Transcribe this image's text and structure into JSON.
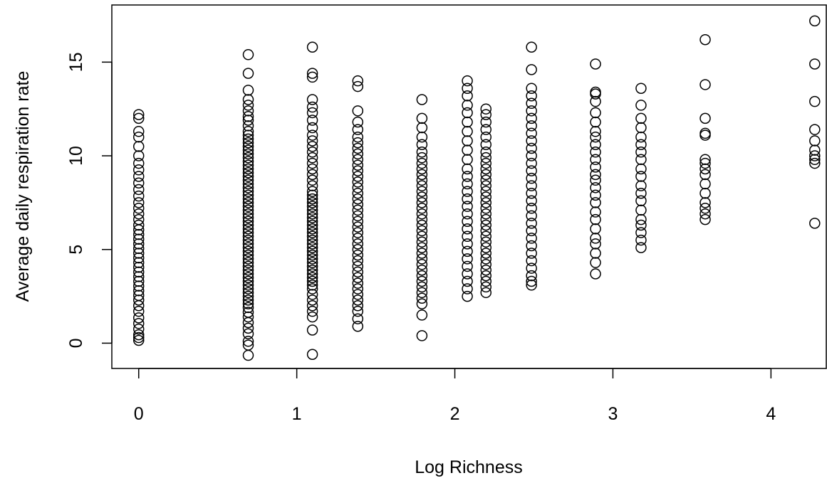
{
  "chart_data": {
    "type": "scatter",
    "title": "",
    "xlabel": "Log Richness",
    "ylabel": "Average daily respiration rate",
    "xlim": [
      -0.17,
      4.35
    ],
    "ylim": [
      -1.35,
      18.05
    ],
    "x_ticks": [
      0,
      1,
      2,
      3,
      4
    ],
    "y_ticks": [
      0,
      5,
      10,
      15
    ],
    "grid": false,
    "legend": "none",
    "groups": [
      {
        "x": 0,
        "y": [
          0.15,
          0.3,
          0.45,
          0.75,
          1.05,
          1.35,
          1.7,
          2.0,
          2.3,
          2.55,
          2.8,
          3.05,
          3.3,
          3.55,
          3.8,
          4.05,
          4.3,
          4.55,
          4.8,
          5.05,
          5.3,
          5.55,
          5.8,
          6.05,
          6.3,
          6.6,
          6.9,
          7.2,
          7.5,
          7.85,
          8.2,
          8.55,
          8.9,
          9.25,
          9.6,
          10.0,
          10.5,
          11.0,
          11.3,
          12.0,
          12.2
        ]
      },
      {
        "x": 0.693,
        "y": [
          -0.65,
          -0.1,
          0.1,
          0.5,
          0.8,
          1.1,
          1.4,
          1.65,
          1.9,
          2.1,
          2.3,
          2.5,
          2.7,
          2.9,
          3.1,
          3.3,
          3.5,
          3.7,
          3.9,
          4.1,
          4.3,
          4.5,
          4.7,
          4.9,
          5.1,
          5.3,
          5.5,
          5.7,
          5.9,
          6.1,
          6.3,
          6.5,
          6.7,
          6.9,
          7.1,
          7.3,
          7.5,
          7.7,
          7.9,
          8.1,
          8.3,
          8.5,
          8.7,
          8.9,
          9.1,
          9.3,
          9.5,
          9.7,
          9.9,
          10.1,
          10.3,
          10.5,
          10.7,
          10.9,
          11.1,
          11.3,
          11.6,
          11.9,
          12.1,
          12.4,
          12.7,
          13.0,
          13.5,
          14.4,
          15.4
        ]
      },
      {
        "x": 1.099,
        "y": [
          -0.6,
          0.7,
          1.4,
          1.7,
          2.0,
          2.3,
          2.6,
          2.9,
          3.1,
          3.3,
          3.5,
          3.7,
          3.9,
          4.1,
          4.3,
          4.5,
          4.7,
          4.9,
          5.1,
          5.3,
          5.5,
          5.7,
          5.9,
          6.1,
          6.3,
          6.5,
          6.7,
          6.9,
          7.1,
          7.3,
          7.5,
          7.7,
          7.9,
          8.1,
          8.4,
          8.7,
          9.0,
          9.3,
          9.6,
          9.9,
          10.2,
          10.5,
          10.8,
          11.1,
          11.5,
          11.9,
          12.3,
          12.6,
          13.0,
          14.2,
          14.4,
          15.8
        ]
      },
      {
        "x": 1.386,
        "y": [
          0.9,
          1.3,
          1.7,
          2.0,
          2.3,
          2.6,
          2.9,
          3.2,
          3.5,
          3.8,
          4.1,
          4.4,
          4.7,
          5.0,
          5.3,
          5.6,
          5.9,
          6.2,
          6.5,
          6.8,
          7.1,
          7.4,
          7.7,
          8.0,
          8.3,
          8.6,
          8.9,
          9.2,
          9.5,
          9.8,
          10.1,
          10.4,
          10.7,
          11.0,
          11.4,
          11.8,
          12.4,
          13.7,
          14.0
        ]
      },
      {
        "x": 1.792,
        "y": [
          0.4,
          1.5,
          2.1,
          2.4,
          2.7,
          3.0,
          3.3,
          3.6,
          3.9,
          4.2,
          4.5,
          4.8,
          5.1,
          5.4,
          5.7,
          6.0,
          6.3,
          6.6,
          6.9,
          7.2,
          7.5,
          7.8,
          8.1,
          8.4,
          8.7,
          9.0,
          9.3,
          9.6,
          9.9,
          10.2,
          10.6,
          11.0,
          11.5,
          12.0,
          13.0
        ]
      },
      {
        "x": 2.079,
        "y": [
          2.5,
          2.9,
          3.3,
          3.7,
          4.1,
          4.5,
          4.9,
          5.3,
          5.7,
          6.1,
          6.5,
          6.9,
          7.3,
          7.7,
          8.1,
          8.5,
          8.9,
          9.3,
          9.8,
          10.3,
          10.8,
          11.3,
          11.8,
          12.3,
          12.7,
          13.2,
          13.6,
          14.0
        ]
      },
      {
        "x": 2.197,
        "y": [
          2.7,
          3.0,
          3.3,
          3.6,
          3.9,
          4.2,
          4.5,
          4.8,
          5.1,
          5.4,
          5.7,
          6.0,
          6.3,
          6.6,
          6.9,
          7.2,
          7.5,
          7.8,
          8.1,
          8.4,
          8.7,
          9.0,
          9.3,
          9.6,
          9.9,
          10.2,
          10.6,
          11.0,
          11.4,
          11.8,
          12.2,
          12.5
        ]
      },
      {
        "x": 2.485,
        "y": [
          3.1,
          3.3,
          3.6,
          4.0,
          4.4,
          4.8,
          5.2,
          5.6,
          6.0,
          6.4,
          6.8,
          7.2,
          7.6,
          8.0,
          8.4,
          8.8,
          9.2,
          9.6,
          10.0,
          10.4,
          10.8,
          11.2,
          11.6,
          12.0,
          12.4,
          12.8,
          13.2,
          13.6,
          14.6,
          15.8
        ]
      },
      {
        "x": 2.89,
        "y": [
          3.7,
          4.3,
          4.8,
          5.3,
          5.6,
          6.1,
          6.6,
          7.0,
          7.5,
          7.9,
          8.3,
          8.7,
          9.0,
          9.4,
          9.8,
          10.2,
          10.6,
          11.0,
          11.3,
          11.8,
          12.3,
          12.9,
          13.3,
          13.4,
          14.9
        ]
      },
      {
        "x": 3.178,
        "y": [
          5.1,
          5.5,
          5.9,
          6.3,
          6.6,
          7.1,
          7.6,
          8.0,
          8.4,
          8.9,
          9.3,
          9.8,
          10.2,
          10.6,
          11.0,
          11.5,
          12.0,
          12.7,
          13.6
        ]
      },
      {
        "x": 3.584,
        "y": [
          6.6,
          6.9,
          7.2,
          7.5,
          8.0,
          8.5,
          9.0,
          9.3,
          9.6,
          9.8,
          11.1,
          11.2,
          12.0,
          13.8,
          16.2
        ]
      },
      {
        "x": 4.277,
        "y": [
          6.4,
          9.6,
          9.8,
          10.0,
          10.3,
          10.8,
          11.4,
          12.9,
          14.9,
          17.2
        ]
      }
    ]
  }
}
